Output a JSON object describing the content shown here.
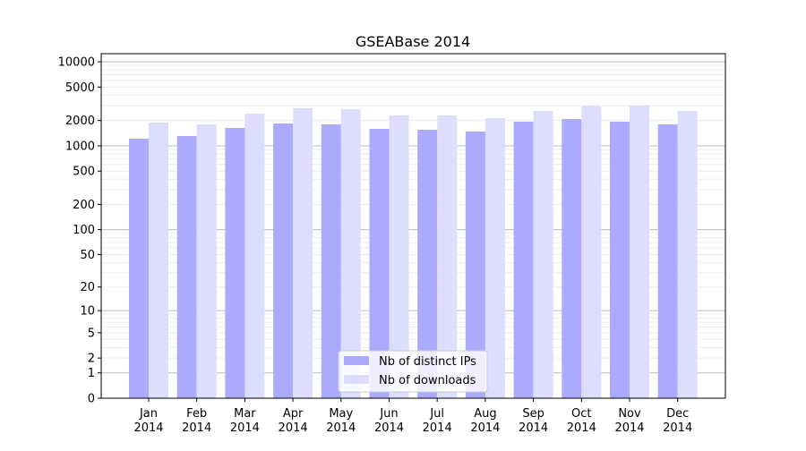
{
  "chart_data": {
    "type": "bar",
    "title": "GSEABase 2014",
    "xlabel": "",
    "ylabel": "",
    "yscale": "log10(1+y)",
    "ylim": [
      0,
      10000
    ],
    "yticks": [
      0,
      1,
      2,
      5,
      10,
      20,
      50,
      100,
      200,
      500,
      1000,
      2000,
      5000,
      10000
    ],
    "categories": [
      "Jan\n2014",
      "Feb\n2014",
      "Mar\n2014",
      "Apr\n2014",
      "May\n2014",
      "Jun\n2014",
      "Jul\n2014",
      "Aug\n2014",
      "Sep\n2014",
      "Oct\n2014",
      "Nov\n2014",
      "Dec\n2014"
    ],
    "series": [
      {
        "name": "Nb of distinct IPs",
        "color": "#aaaaff",
        "values": [
          1217,
          1310,
          1632,
          1845,
          1800,
          1592,
          1553,
          1480,
          1935,
          2085,
          1935,
          1800
        ]
      },
      {
        "name": "Nb of downloads",
        "color": "#ddddff",
        "values": [
          1890,
          1800,
          2415,
          2800,
          2730,
          2300,
          2300,
          2136,
          2600,
          3010,
          3010,
          2600
        ]
      }
    ],
    "grid": true,
    "legend": "bottom-center"
  }
}
